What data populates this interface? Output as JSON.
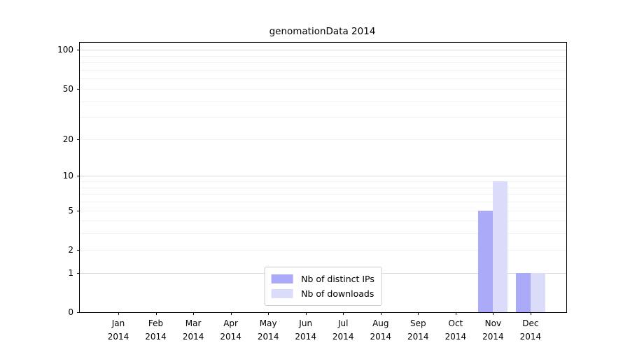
{
  "title": "genomationData 2014",
  "chart_data": {
    "type": "bar",
    "title": "genomationData 2014",
    "categories": [
      "Jan 2014",
      "Feb 2014",
      "Mar 2014",
      "Apr 2014",
      "May 2014",
      "Jun 2014",
      "Jul 2014",
      "Aug 2014",
      "Sep 2014",
      "Oct 2014",
      "Nov 2014",
      "Dec 2014"
    ],
    "series": [
      {
        "name": "Nb of distinct IPs",
        "color": "#aaaaf8",
        "values": [
          0,
          0,
          0,
          0,
          0,
          0,
          0,
          0,
          0,
          0,
          5,
          1
        ]
      },
      {
        "name": "Nb of downloads",
        "color": "#dbdbfa",
        "values": [
          0,
          0,
          0,
          0,
          0,
          0,
          0,
          0,
          0,
          0,
          9,
          1
        ]
      }
    ],
    "yticks": [
      0,
      1,
      2,
      5,
      10,
      20,
      50,
      100
    ],
    "minor_gridlines": [
      2,
      3,
      4,
      5,
      6,
      7,
      8,
      9,
      20,
      30,
      40,
      50,
      60,
      70,
      80,
      90
    ],
    "major_gridlines": [
      1,
      10,
      100
    ],
    "scale": "log1p",
    "ylim": [
      0,
      113.6
    ],
    "xlabel": "",
    "ylabel": "",
    "grid": "horizontal",
    "legend_position": "lower center"
  }
}
